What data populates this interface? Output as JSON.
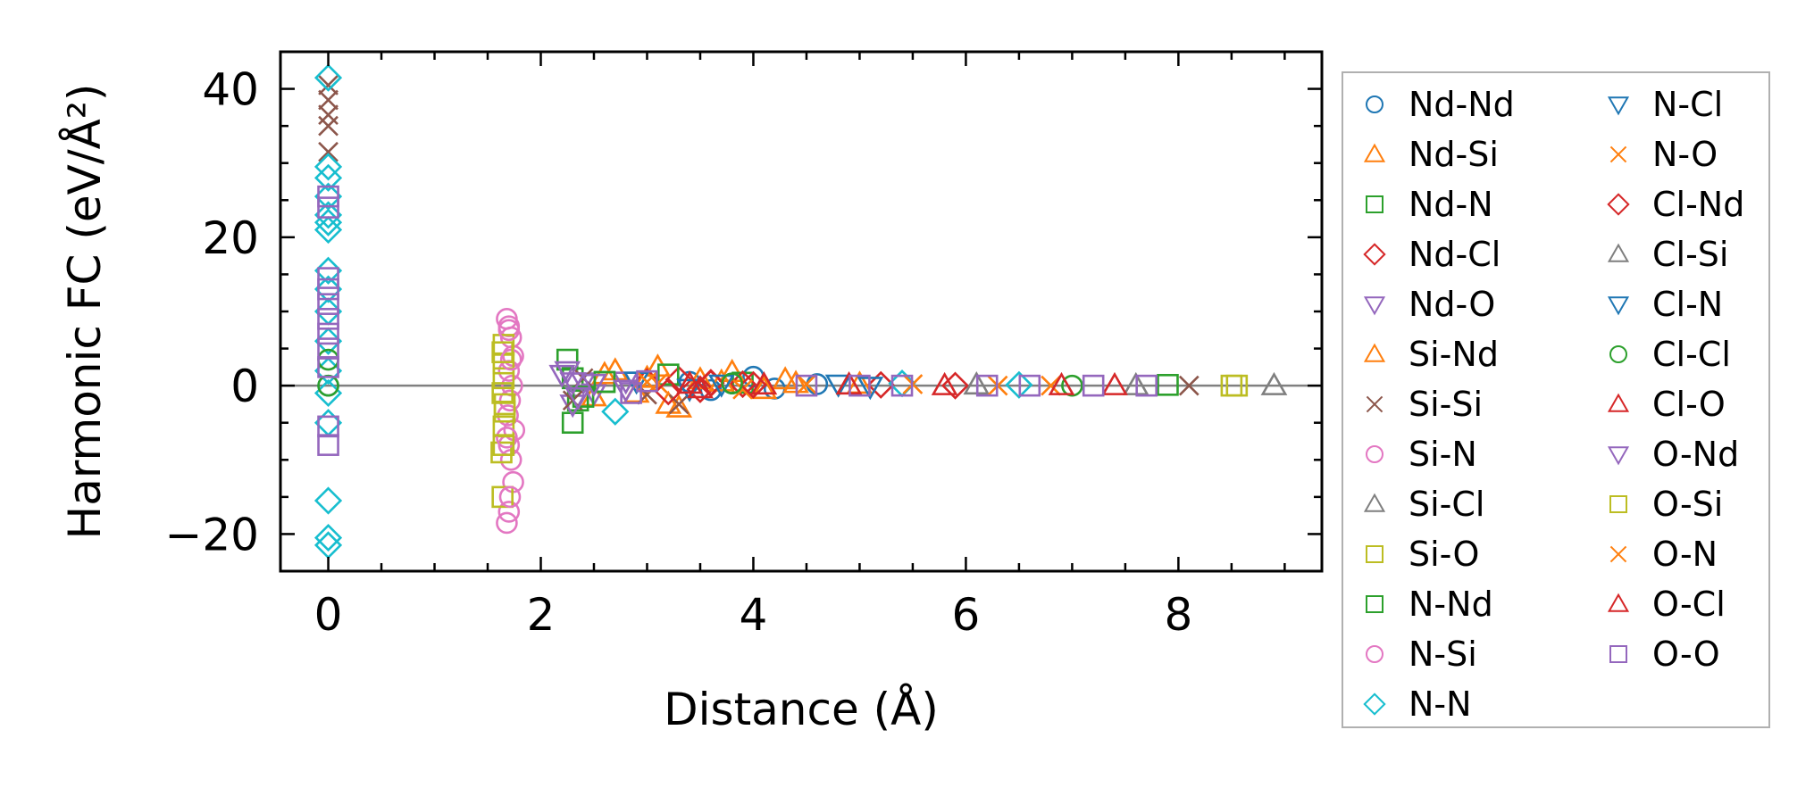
{
  "chart_data": {
    "type": "scatter",
    "xlabel": "Distance (Å)",
    "ylabel": "Harmonic FC (eV/Å²)",
    "xlim": [
      -0.45,
      9.35
    ],
    "ylim": [
      -25.0,
      45.0
    ],
    "xticks": [
      0,
      2,
      4,
      6,
      8
    ],
    "yticks": [
      -20,
      0,
      20,
      40
    ],
    "xtick_labels": [
      "0",
      "2",
      "4",
      "6",
      "8"
    ],
    "ytick_labels": [
      "−20",
      "0",
      "20",
      "40"
    ],
    "grid": false,
    "zero_line": true,
    "legend_position": "outside-right",
    "series": [
      {
        "name": "Nd-Nd",
        "marker": "circle",
        "color": "#1f77b4",
        "x": [
          0,
          3.4,
          3.6,
          3.8,
          4.0,
          4.2,
          4.6
        ],
        "y": [
          0,
          0.5,
          -0.6,
          0.3,
          1.2,
          -0.4,
          0.2
        ]
      },
      {
        "name": "Nd-Si",
        "marker": "triangle-up",
        "color": "#ff7f0e",
        "x": [
          2.5,
          2.7,
          3.0,
          3.2,
          3.5,
          3.8,
          4.1,
          4.4
        ],
        "y": [
          -1.5,
          2.0,
          1.0,
          -2.5,
          0.8,
          1.8,
          -0.5,
          0.3
        ]
      },
      {
        "name": "Nd-N",
        "marker": "square",
        "color": "#2ca02c",
        "x": [
          2.25,
          2.3,
          2.3,
          2.35,
          2.6,
          3.9
        ],
        "y": [
          3.5,
          -5.0,
          1.0,
          -2.0,
          0.5,
          0.4
        ]
      },
      {
        "name": "Nd-Cl",
        "marker": "diamond",
        "color": "#d62728",
        "x": [
          3.0,
          3.3,
          3.5,
          3.6,
          3.9,
          5.2
        ],
        "y": [
          0.5,
          0.8,
          -0.5,
          0.3,
          0.2,
          0.1
        ]
      },
      {
        "name": "Nd-O",
        "marker": "triangle-down",
        "color": "#9467bd",
        "x": [
          2.2,
          2.3,
          2.4,
          2.5,
          2.8
        ],
        "y": [
          1.5,
          -2.5,
          0.5,
          -1.0,
          0.6
        ]
      },
      {
        "name": "Si-Nd",
        "marker": "triangle-up",
        "color": "#ff7f0e",
        "x": [
          2.6,
          2.9,
          3.1,
          3.3,
          3.7,
          4.3,
          5.0
        ],
        "y": [
          1.5,
          -1.0,
          2.5,
          -3.0,
          0.5,
          0.8,
          0.2
        ]
      },
      {
        "name": "Si-Si",
        "marker": "x",
        "color": "#8c564b",
        "x": [
          0,
          0,
          0,
          0,
          0,
          2.3,
          2.4,
          3.0,
          3.3,
          8.1
        ],
        "y": [
          40.5,
          38.5,
          36.5,
          35.0,
          31.5,
          -2.0,
          1.0,
          -1.2,
          -2.5,
          0
        ]
      },
      {
        "name": "Si-N",
        "marker": "circle",
        "color": "#e377c2",
        "x": [
          1.68,
          1.7,
          1.72,
          1.74,
          1.7,
          1.73,
          1.71,
          1.69,
          1.75,
          1.7,
          1.72,
          1.74,
          1.7,
          1.68
        ],
        "y": [
          9.0,
          8.0,
          6.5,
          4.0,
          2.0,
          0.0,
          -2.0,
          -4.0,
          -6.0,
          -8.0,
          -10.0,
          -13.0,
          -17.0,
          -18.5
        ]
      },
      {
        "name": "Si-Cl",
        "marker": "triangle-up",
        "color": "#7f7f7f",
        "x": [
          8.9
        ],
        "y": [
          0
        ]
      },
      {
        "name": "Si-O",
        "marker": "square",
        "color": "#bcbd22",
        "x": [
          1.65,
          1.65,
          1.65,
          1.64,
          1.66,
          1.65,
          1.63,
          1.64,
          8.5
        ],
        "y": [
          5.5,
          3.0,
          1.0,
          -1.0,
          -3.5,
          -5.5,
          -9.0,
          -15.0,
          0
        ]
      },
      {
        "name": "N-Nd",
        "marker": "square",
        "color": "#2ca02c",
        "x": [
          2.4,
          2.6,
          3.2,
          7.9
        ],
        "y": [
          -1.5,
          0.5,
          1.5,
          0.1
        ]
      },
      {
        "name": "N-Si",
        "marker": "circle",
        "color": "#e377c2",
        "x": [
          1.7,
          1.72,
          1.68,
          1.71
        ],
        "y": [
          7.5,
          3.5,
          -7.0,
          -15.0
        ]
      },
      {
        "name": "N-N",
        "marker": "diamond",
        "color": "#17becf",
        "x": [
          0,
          0,
          0,
          0,
          0,
          0,
          0,
          0,
          0,
          0,
          0,
          0,
          0,
          0,
          0,
          0,
          0,
          2.7,
          5.4,
          6.5
        ],
        "y": [
          41.5,
          29.5,
          28.0,
          25.5,
          23.0,
          22.0,
          21.0,
          15.5,
          13.0,
          10.0,
          6.0,
          2.0,
          -1.0,
          -5.0,
          -15.5,
          -20.5,
          -21.5,
          -3.5,
          0.3,
          0.1
        ]
      },
      {
        "name": "N-Cl",
        "marker": "triangle-down",
        "color": "#1f77b4",
        "x": [
          2.9,
          3.4,
          4.8
        ],
        "y": [
          0.6,
          -0.4,
          0.2
        ]
      },
      {
        "name": "N-O",
        "marker": "x",
        "color": "#ff7f0e",
        "x": [
          3.1,
          3.9,
          5.5,
          6.8
        ],
        "y": [
          0.3,
          -0.5,
          0.2,
          0
        ]
      },
      {
        "name": "Cl-Nd",
        "marker": "diamond",
        "color": "#d62728",
        "x": [
          3.2,
          3.6,
          4.0,
          5.9
        ],
        "y": [
          -0.8,
          0.4,
          0.1,
          0
        ]
      },
      {
        "name": "Cl-Si",
        "marker": "triangle-up",
        "color": "#7f7f7f",
        "x": [
          6.1,
          7.6
        ],
        "y": [
          0.1,
          0
        ]
      },
      {
        "name": "Cl-N",
        "marker": "triangle-down",
        "color": "#1f77b4",
        "x": [
          3.7,
          5.1
        ],
        "y": [
          0.2,
          -0.1
        ]
      },
      {
        "name": "Cl-Cl",
        "marker": "circle",
        "color": "#2ca02c",
        "x": [
          0,
          0,
          3.8,
          7.0
        ],
        "y": [
          0,
          3.5,
          0.3,
          0
        ]
      },
      {
        "name": "Cl-O",
        "marker": "triangle-up",
        "color": "#d62728",
        "x": [
          3.5,
          4.1,
          5.8,
          7.4
        ],
        "y": [
          -0.4,
          0.1,
          0,
          0
        ]
      },
      {
        "name": "O-Nd",
        "marker": "triangle-down",
        "color": "#9467bd",
        "x": [
          2.25,
          2.3,
          2.35,
          2.5,
          2.8
        ],
        "y": [
          2.0,
          0.5,
          -1.5,
          0.3,
          -0.5
        ]
      },
      {
        "name": "O-Si",
        "marker": "square",
        "color": "#bcbd22",
        "x": [
          1.64,
          1.66,
          1.65,
          8.55
        ],
        "y": [
          4.5,
          -2.5,
          -8.0,
          0
        ]
      },
      {
        "name": "O-N",
        "marker": "x",
        "color": "#ff7f0e",
        "x": [
          3.0,
          4.5,
          6.3
        ],
        "y": [
          0.5,
          0.2,
          0
        ]
      },
      {
        "name": "O-Cl",
        "marker": "triangle-up",
        "color": "#d62728",
        "x": [
          3.4,
          4.9,
          6.9
        ],
        "y": [
          0.2,
          0.1,
          0
        ]
      },
      {
        "name": "O-O",
        "marker": "square",
        "color": "#9467bd",
        "x": [
          0,
          0,
          0,
          0,
          0,
          0,
          0,
          0,
          0,
          0,
          0,
          2.85,
          3.0,
          4.5,
          5.0,
          5.4,
          6.2,
          6.6,
          7.2,
          7.7
        ],
        "y": [
          25.5,
          24.0,
          14.5,
          13.0,
          11.0,
          9.0,
          7.0,
          5.0,
          2.5,
          -5.5,
          -8.0,
          -1.0,
          0.6,
          0,
          0,
          0,
          0,
          0,
          0,
          0
        ]
      }
    ]
  }
}
